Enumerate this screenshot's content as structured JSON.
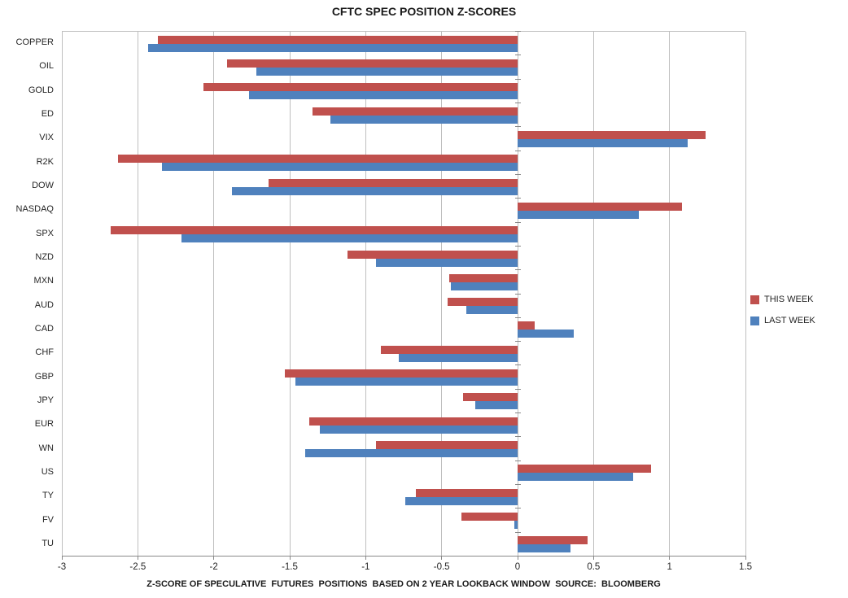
{
  "chart_data": {
    "type": "bar",
    "orientation": "horizontal",
    "title": "CFTC SPEC POSITION Z-SCORES",
    "xlabel": "Z-SCORE OF SPECULATIVE  FUTURES  POSITIONS  BASED ON 2 YEAR LOOKBACK WINDOW  SOURCE:  BLOOMBERG",
    "xlim": [
      -3,
      1.5
    ],
    "xtick_values": [
      -3,
      -2.5,
      -2,
      -1.5,
      -1,
      -0.5,
      0,
      0.5,
      1,
      1.5
    ],
    "xtick_labels": [
      "-3",
      "-2.5",
      "-2",
      "-1.5",
      "-1",
      "-0.5",
      "0",
      "0.5",
      "1",
      "1.5"
    ],
    "categories": [
      "COPPER",
      "OIL",
      "GOLD",
      "ED",
      "VIX",
      "R2K",
      "DOW",
      "NASDAQ",
      "SPX",
      "NZD",
      "MXN",
      "AUD",
      "CAD",
      "CHF",
      "GBP",
      "JPY",
      "EUR",
      "WN",
      "US",
      "TY",
      "FV",
      "TU"
    ],
    "series": [
      {
        "name": "THIS WEEK",
        "color": "#C0504D",
        "values": [
          -2.37,
          -1.91,
          -2.07,
          -1.35,
          1.24,
          -2.63,
          -1.64,
          1.08,
          -2.68,
          -1.12,
          -0.45,
          -0.46,
          0.11,
          -0.9,
          -1.53,
          -0.36,
          -1.37,
          -0.93,
          0.88,
          -0.67,
          -0.37,
          0.46
        ]
      },
      {
        "name": "LAST WEEK",
        "color": "#4F81BD",
        "values": [
          -2.43,
          -1.72,
          -1.77,
          -1.23,
          1.12,
          -2.34,
          -1.88,
          0.8,
          -2.21,
          -0.93,
          -0.44,
          -0.34,
          0.37,
          -0.78,
          -1.46,
          -0.28,
          -1.3,
          -1.4,
          0.76,
          -0.74,
          -0.02,
          0.35
        ]
      }
    ],
    "legend_position": "right",
    "grid": "vertical",
    "colors": {
      "gridline": "#BFBFBF",
      "axis": "#898989",
      "text": "#262626"
    }
  }
}
